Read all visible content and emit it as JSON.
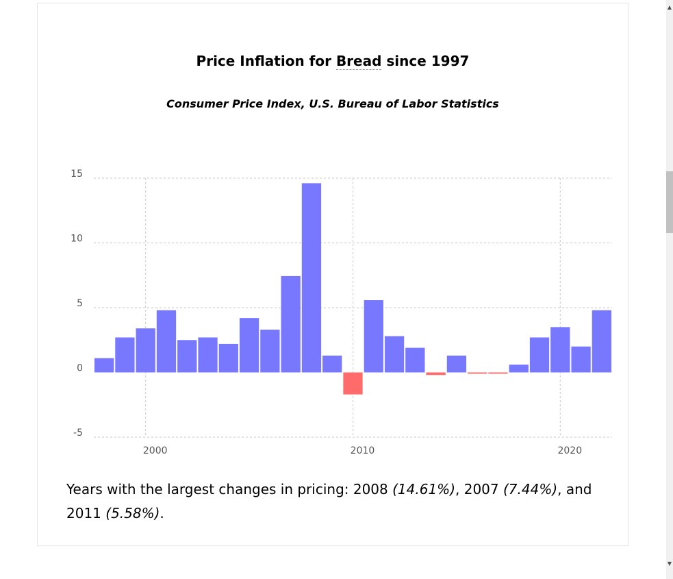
{
  "header": {
    "title_prefix": "Price Inflation for ",
    "title_keyword": "Bread",
    "title_suffix": " since 1997",
    "subtitle": "Consumer Price Index, U.S. Bureau of Labor Statistics"
  },
  "summary": {
    "intro": "Years with the largest changes in pricing: ",
    "year1": "2008",
    "pct1": "(14.61%)",
    "year2": "2007",
    "pct2": "(7.44%)",
    "and": ", and ",
    "year3": "2011",
    "pct3": "(5.58%)",
    "comma": ", ",
    "end": "."
  },
  "colors": {
    "positive": "#7878ff",
    "negative": "#ff6b6b",
    "grid": "#c8c8c8"
  },
  "chart_data": {
    "type": "bar",
    "title": "Price Inflation for Bread since 1997",
    "subtitle": "Consumer Price Index, U.S. Bureau of Labor Statistics",
    "xlabel": "",
    "ylabel": "",
    "ylim": [
      -5,
      15
    ],
    "xlim": [
      1997.5,
      2022.5
    ],
    "yticks": [
      -5,
      0,
      5,
      10,
      15
    ],
    "xticks": [
      2000,
      2010,
      2020
    ],
    "grid": true,
    "x": [
      1998,
      1999,
      2000,
      2001,
      2002,
      2003,
      2004,
      2005,
      2006,
      2007,
      2008,
      2009,
      2010,
      2011,
      2012,
      2013,
      2014,
      2015,
      2016,
      2017,
      2018,
      2019,
      2020,
      2021,
      2022
    ],
    "values": [
      1.1,
      2.7,
      3.4,
      4.8,
      2.5,
      2.7,
      2.2,
      4.2,
      3.3,
      7.44,
      14.61,
      1.3,
      -1.7,
      5.58,
      2.8,
      1.9,
      -0.2,
      1.3,
      -0.1,
      -0.1,
      0.6,
      2.7,
      3.5,
      2.0,
      4.8
    ]
  }
}
